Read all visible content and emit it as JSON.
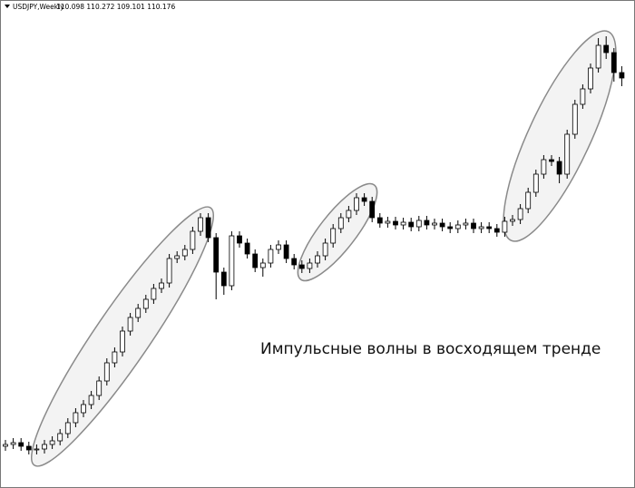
{
  "chart_data": {
    "type": "candlestick",
    "symbol": "USDJPY,Weekly",
    "quote": "110.098 110.272 109.101 110.176",
    "annotation": "Импульсные волны в восходящем тренде",
    "ylim": [
      0,
      520
    ],
    "up_color": "#ffffff",
    "down_color": "#000000",
    "outline_color": "#000000",
    "open": [
      28,
      30,
      32,
      28,
      24,
      25,
      30,
      34,
      42,
      54,
      65,
      74,
      84,
      100,
      120,
      132,
      155,
      170,
      180,
      190,
      202,
      208,
      235,
      238,
      245,
      265,
      280,
      258,
      220,
      205,
      260,
      252,
      240,
      225,
      230,
      245,
      250,
      235,
      228,
      224,
      230,
      238,
      252,
      268,
      280,
      288,
      302,
      298,
      280,
      274,
      276,
      272,
      275,
      270,
      277,
      272,
      274,
      270,
      268,
      272,
      274,
      268,
      270,
      268,
      264,
      276,
      278,
      290,
      308,
      328,
      344,
      342,
      328,
      372,
      405,
      422,
      445,
      470,
      462,
      440
    ],
    "high": [
      35,
      37,
      37,
      33,
      30,
      35,
      39,
      47,
      59,
      70,
      79,
      89,
      105,
      125,
      137,
      160,
      175,
      185,
      195,
      207,
      213,
      240,
      243,
      250,
      270,
      285,
      285,
      263,
      225,
      265,
      265,
      257,
      245,
      235,
      250,
      255,
      255,
      240,
      233,
      235,
      243,
      257,
      273,
      285,
      293,
      307,
      307,
      303,
      285,
      281,
      281,
      280,
      280,
      282,
      282,
      279,
      279,
      275,
      277,
      279,
      279,
      275,
      275,
      273,
      281,
      283,
      295,
      313,
      333,
      349,
      349,
      347,
      377,
      410,
      427,
      450,
      478,
      480,
      467,
      447
    ],
    "low": [
      23,
      25,
      23,
      19,
      19,
      20,
      25,
      29,
      37,
      49,
      60,
      69,
      79,
      95,
      115,
      127,
      150,
      165,
      175,
      185,
      197,
      203,
      230,
      233,
      240,
      260,
      253,
      190,
      195,
      200,
      247,
      235,
      220,
      215,
      225,
      240,
      230,
      223,
      219,
      219,
      225,
      233,
      247,
      263,
      275,
      283,
      293,
      275,
      269,
      269,
      267,
      267,
      265,
      265,
      267,
      267,
      265,
      263,
      263,
      267,
      263,
      263,
      263,
      259,
      259,
      271,
      273,
      285,
      303,
      323,
      337,
      318,
      323,
      367,
      400,
      417,
      440,
      455,
      430,
      425
    ],
    "close": [
      30,
      32,
      28,
      24,
      25,
      30,
      34,
      42,
      54,
      65,
      74,
      84,
      100,
      120,
      132,
      155,
      170,
      180,
      190,
      202,
      208,
      235,
      238,
      245,
      265,
      280,
      258,
      220,
      205,
      260,
      252,
      240,
      225,
      230,
      245,
      250,
      235,
      228,
      224,
      230,
      238,
      252,
      268,
      280,
      288,
      302,
      298,
      280,
      274,
      276,
      272,
      275,
      270,
      277,
      272,
      274,
      270,
      268,
      272,
      274,
      268,
      270,
      268,
      264,
      276,
      278,
      290,
      308,
      328,
      344,
      342,
      328,
      372,
      405,
      422,
      445,
      470,
      462,
      440,
      434
    ]
  }
}
